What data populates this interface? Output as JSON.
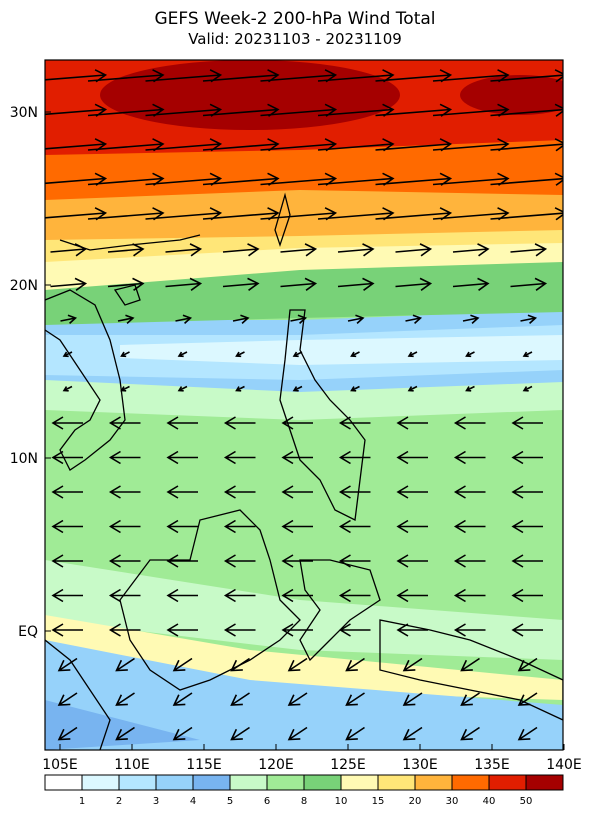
{
  "header": {
    "title": "GEFS Week-2 200-hPa Wind Total",
    "subtitle": "Valid: 20231103 - 20231109"
  },
  "map": {
    "lon_labels": [
      "105E",
      "110E",
      "115E",
      "120E",
      "125E",
      "130E",
      "135E",
      "140E"
    ],
    "lat_labels": [
      "30N",
      "20N",
      "10N",
      "EQ"
    ]
  },
  "colorbar": {
    "levels": [
      "1",
      "2",
      "3",
      "4",
      "5",
      "6",
      "8",
      "10",
      "15",
      "20",
      "30",
      "40",
      "50"
    ],
    "colors": [
      "#ffffff",
      "#dcf8ff",
      "#b4e6ff",
      "#96d2fa",
      "#78b4f0",
      "#c8fac8",
      "#a0eb96",
      "#78d278",
      "#fffab4",
      "#ffe678",
      "#ffb43c",
      "#ff6a00",
      "#e11e00",
      "#a50000"
    ]
  }
}
